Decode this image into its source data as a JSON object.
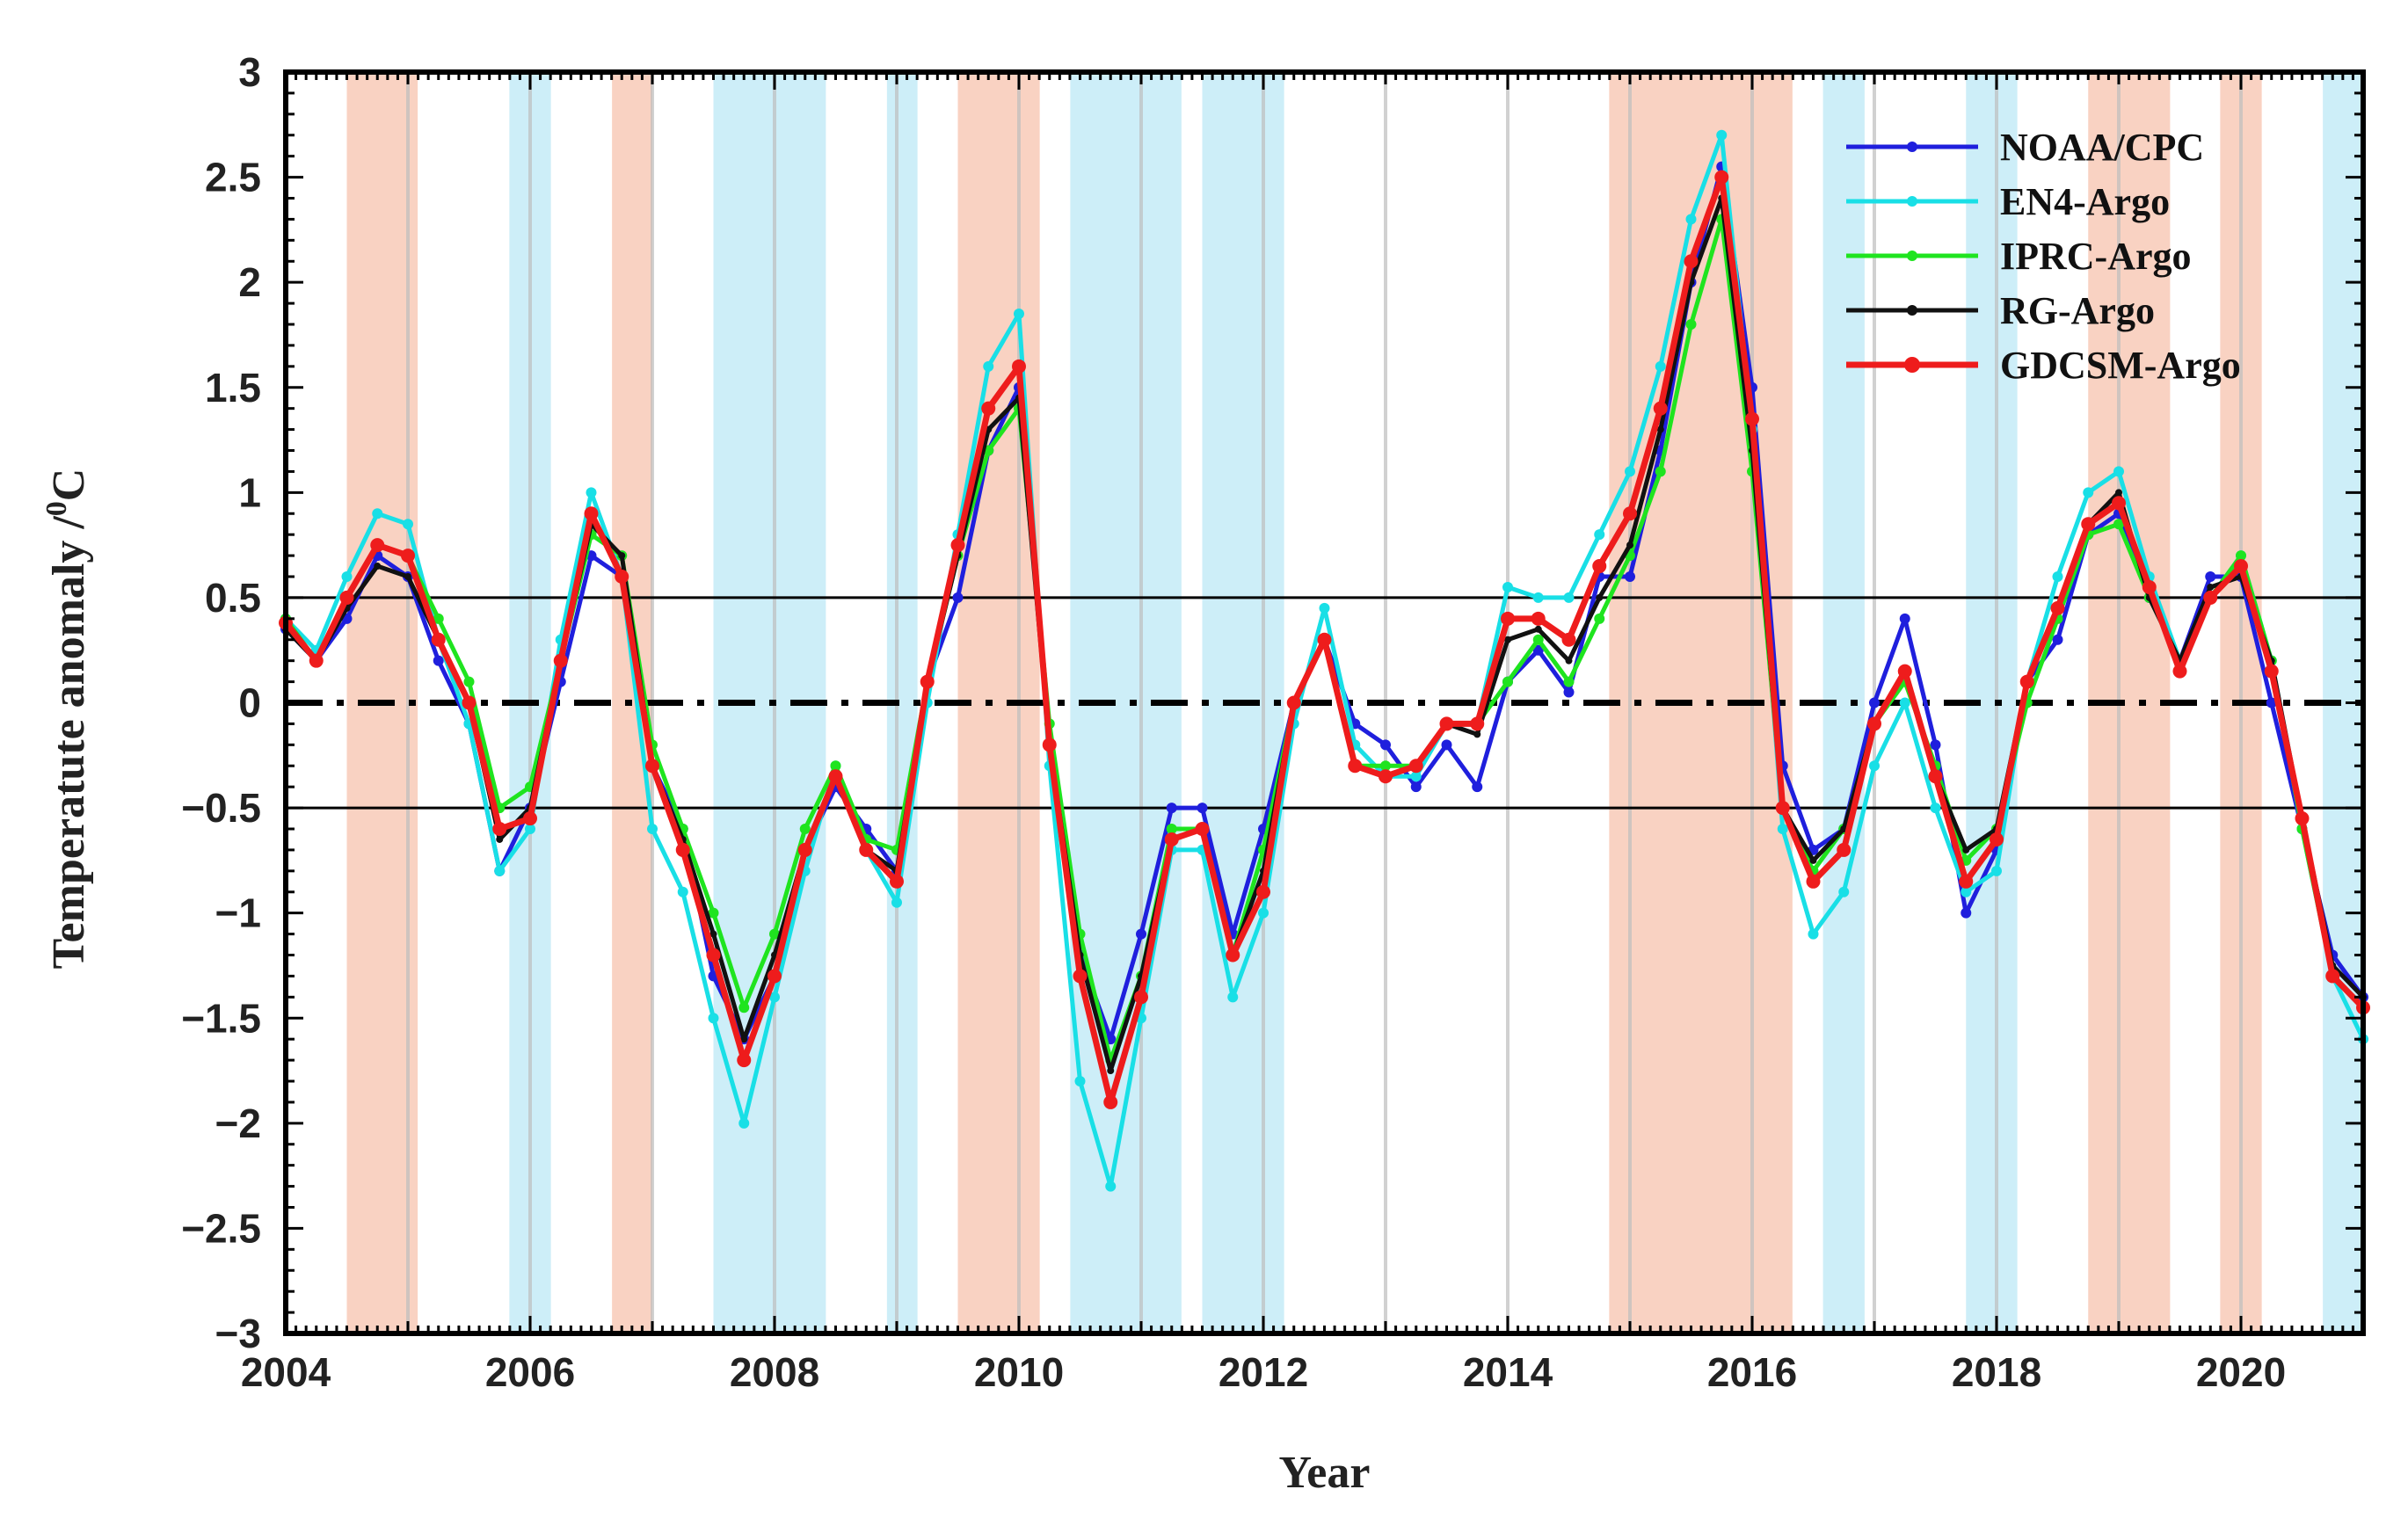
{
  "chart_data": {
    "type": "line",
    "title": "",
    "xlabel": "Year",
    "ylabel": "Temperatute anomaly /⁰C",
    "ylabel_main": "Temperatute anomaly /",
    "ylabel_sup": "0",
    "ylabel_unit": "C",
    "xlim": [
      2004,
      2021
    ],
    "ylim": [
      -3,
      3
    ],
    "x_ticks": [
      2004,
      2006,
      2008,
      2010,
      2012,
      2014,
      2016,
      2018,
      2020
    ],
    "x_tick_labels": [
      "2004",
      "2006",
      "2008",
      "2010",
      "2012",
      "2014",
      "2016",
      "2018",
      "2020"
    ],
    "y_ticks": [
      3,
      2.5,
      2,
      1.5,
      1,
      0.5,
      0,
      -0.5,
      -1,
      -1.5,
      -2,
      -2.5,
      -3
    ],
    "y_tick_labels": [
      "3",
      "2.5",
      "2",
      "1.5",
      "1",
      "0.5",
      "0",
      "−0.5",
      "−1",
      "−1.5",
      "−2",
      "−2.5",
      "−3"
    ],
    "reference_lines": [
      {
        "y": 0.5,
        "style": "solid",
        "color": "#000000"
      },
      {
        "y": 0,
        "style": "dashdot",
        "color": "#000000"
      },
      {
        "y": -0.5,
        "style": "solid",
        "color": "#000000"
      }
    ],
    "shaded_periods": {
      "el_nino": [
        [
          2004.5,
          2005.08
        ],
        [
          2006.67,
          2007.0
        ],
        [
          2009.5,
          2010.17
        ],
        [
          2014.83,
          2016.33
        ],
        [
          2018.75,
          2019.42
        ],
        [
          2019.83,
          2020.17
        ]
      ],
      "la_nina": [
        [
          2005.83,
          2006.17
        ],
        [
          2007.5,
          2008.42
        ],
        [
          2008.92,
          2009.17
        ],
        [
          2010.42,
          2011.33
        ],
        [
          2011.5,
          2012.17
        ],
        [
          2016.58,
          2016.92
        ],
        [
          2017.75,
          2018.17
        ],
        [
          2020.67,
          2021.0
        ]
      ],
      "el_nino_color": "#f9d2c2",
      "la_nina_color": "#cdeef8"
    },
    "x": [
      2004.0,
      2004.25,
      2004.5,
      2004.75,
      2005.0,
      2005.25,
      2005.5,
      2005.75,
      2006.0,
      2006.25,
      2006.5,
      2006.75,
      2007.0,
      2007.25,
      2007.5,
      2007.75,
      2008.0,
      2008.25,
      2008.5,
      2008.75,
      2009.0,
      2009.25,
      2009.5,
      2009.75,
      2010.0,
      2010.25,
      2010.5,
      2010.75,
      2011.0,
      2011.25,
      2011.5,
      2011.75,
      2012.0,
      2012.25,
      2012.5,
      2012.75,
      2013.0,
      2013.25,
      2013.5,
      2013.75,
      2014.0,
      2014.25,
      2014.5,
      2014.75,
      2015.0,
      2015.25,
      2015.5,
      2015.75,
      2016.0,
      2016.25,
      2016.5,
      2016.75,
      2017.0,
      2017.25,
      2017.5,
      2017.75,
      2018.0,
      2018.25,
      2018.5,
      2018.75,
      2019.0,
      2019.25,
      2019.5,
      2019.75,
      2020.0,
      2020.25,
      2020.5,
      2020.75,
      2021.0
    ],
    "series": [
      {
        "name": "NOAA/CPC",
        "color": "#1f1fdd",
        "values": [
          0.35,
          0.2,
          0.4,
          0.7,
          0.6,
          0.2,
          -0.1,
          -0.8,
          -0.5,
          0.1,
          0.7,
          0.6,
          -0.3,
          -0.6,
          -1.3,
          -1.6,
          -1.3,
          -0.7,
          -0.4,
          -0.6,
          -0.8,
          0.1,
          0.5,
          1.2,
          1.5,
          -0.2,
          -1.2,
          -1.6,
          -1.1,
          -0.5,
          -0.5,
          -1.1,
          -0.6,
          0.0,
          0.3,
          -0.1,
          -0.2,
          -0.4,
          -0.2,
          -0.4,
          0.1,
          0.25,
          0.05,
          0.6,
          0.6,
          1.2,
          2.0,
          2.55,
          1.5,
          -0.3,
          -0.7,
          -0.6,
          0.0,
          0.4,
          -0.2,
          -1.0,
          -0.7,
          0.1,
          0.3,
          0.8,
          0.9,
          0.5,
          0.2,
          0.6,
          0.6,
          0.0,
          -0.6,
          -1.2,
          -1.4
        ]
      },
      {
        "name": "EN4-Argo",
        "color": "#19dfe6",
        "values": [
          0.4,
          0.25,
          0.6,
          0.9,
          0.85,
          0.3,
          -0.1,
          -0.8,
          -0.6,
          0.3,
          1.0,
          0.6,
          -0.6,
          -0.9,
          -1.5,
          -2.0,
          -1.4,
          -0.8,
          -0.3,
          -0.7,
          -0.95,
          0.0,
          0.8,
          1.6,
          1.85,
          -0.3,
          -1.8,
          -2.3,
          -1.5,
          -0.7,
          -0.7,
          -1.4,
          -1.0,
          -0.1,
          0.45,
          -0.2,
          -0.35,
          -0.35,
          -0.1,
          -0.1,
          0.55,
          0.5,
          0.5,
          0.8,
          1.1,
          1.6,
          2.3,
          2.7,
          1.3,
          -0.6,
          -1.1,
          -0.9,
          -0.3,
          0.0,
          -0.5,
          -0.9,
          -0.8,
          0.1,
          0.6,
          1.0,
          1.1,
          0.6,
          0.2,
          0.5,
          0.7,
          0.2,
          -0.6,
          -1.3,
          -1.6
        ]
      },
      {
        "name": "IPRC-Argo",
        "color": "#1fe41f",
        "values": [
          0.4,
          0.2,
          0.5,
          0.75,
          0.7,
          0.4,
          0.1,
          -0.5,
          -0.4,
          0.2,
          0.8,
          0.7,
          -0.2,
          -0.6,
          -1.0,
          -1.45,
          -1.1,
          -0.6,
          -0.3,
          -0.65,
          -0.7,
          0.1,
          0.7,
          1.2,
          1.4,
          -0.1,
          -1.1,
          -1.7,
          -1.3,
          -0.6,
          -0.6,
          -1.2,
          -0.7,
          0.0,
          0.3,
          -0.3,
          -0.3,
          -0.3,
          -0.1,
          -0.1,
          0.1,
          0.3,
          0.1,
          0.4,
          0.7,
          1.1,
          1.8,
          2.3,
          1.1,
          -0.5,
          -0.8,
          -0.6,
          -0.1,
          0.1,
          -0.3,
          -0.75,
          -0.6,
          0.0,
          0.4,
          0.8,
          0.85,
          0.5,
          0.2,
          0.5,
          0.7,
          0.2,
          -0.6,
          -1.3,
          -1.45
        ]
      },
      {
        "name": "RG-Argo",
        "color": "#111111",
        "values": [
          0.35,
          0.2,
          0.45,
          0.65,
          0.6,
          0.3,
          0.0,
          -0.65,
          -0.5,
          0.2,
          0.85,
          0.7,
          -0.3,
          -0.65,
          -1.1,
          -1.6,
          -1.2,
          -0.7,
          -0.35,
          -0.7,
          -0.8,
          0.1,
          0.7,
          1.3,
          1.45,
          -0.2,
          -1.2,
          -1.75,
          -1.3,
          -0.65,
          -0.6,
          -1.2,
          -0.8,
          0.0,
          0.3,
          -0.3,
          -0.35,
          -0.3,
          -0.1,
          -0.15,
          0.3,
          0.35,
          0.2,
          0.5,
          0.75,
          1.3,
          2.0,
          2.4,
          1.2,
          -0.5,
          -0.75,
          -0.6,
          -0.1,
          0.15,
          -0.35,
          -0.7,
          -0.6,
          0.1,
          0.45,
          0.85,
          1.0,
          0.5,
          0.2,
          0.55,
          0.6,
          0.2,
          -0.55,
          -1.25,
          -1.4
        ]
      },
      {
        "name": "GDCSM-Argo",
        "color": "#ee1c1c",
        "values": [
          0.38,
          0.2,
          0.5,
          0.75,
          0.7,
          0.3,
          0.0,
          -0.6,
          -0.55,
          0.2,
          0.9,
          0.6,
          -0.3,
          -0.7,
          -1.2,
          -1.7,
          -1.3,
          -0.7,
          -0.35,
          -0.7,
          -0.85,
          0.1,
          0.75,
          1.4,
          1.6,
          -0.2,
          -1.3,
          -1.9,
          -1.4,
          -0.65,
          -0.6,
          -1.2,
          -0.9,
          0.0,
          0.3,
          -0.3,
          -0.35,
          -0.3,
          -0.1,
          -0.1,
          0.4,
          0.4,
          0.3,
          0.65,
          0.9,
          1.4,
          2.1,
          2.5,
          1.35,
          -0.5,
          -0.85,
          -0.7,
          -0.1,
          0.15,
          -0.35,
          -0.85,
          -0.65,
          0.1,
          0.45,
          0.85,
          0.95,
          0.55,
          0.15,
          0.5,
          0.65,
          0.15,
          -0.55,
          -1.3,
          -1.45
        ]
      }
    ]
  }
}
